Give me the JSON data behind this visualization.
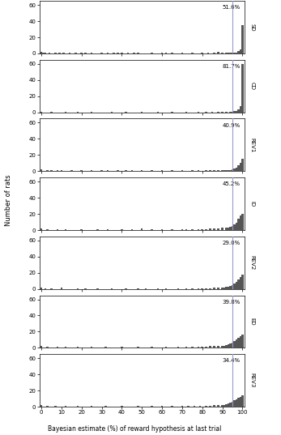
{
  "stages": [
    "SD",
    "CD",
    "REV1",
    "ID",
    "REV2",
    "ED",
    "REV3"
  ],
  "percentages": [
    51.6,
    81.7,
    40.9,
    45.2,
    29.0,
    39.8,
    34.4
  ],
  "vline_x": 95,
  "ylim": [
    0,
    65
  ],
  "yticks": [
    0,
    20,
    40,
    60
  ],
  "xlim": [
    0,
    100
  ],
  "xticks": [
    0,
    10,
    20,
    30,
    40,
    50,
    60,
    70,
    80,
    90,
    100
  ],
  "xlabel": "Bayesian estimate (%) of reward hypothesis at last trial",
  "ylabel": "Number of rats",
  "bar_color": "#555555",
  "vline_color": "#9999cc",
  "background_color": "#ffffff",
  "stage_hist": {
    "SD": [
      2,
      1,
      1,
      0,
      1,
      0,
      0,
      1,
      0,
      1,
      0,
      1,
      0,
      0,
      1,
      0,
      0,
      1,
      0,
      0,
      1,
      0,
      1,
      0,
      0,
      1,
      0,
      0,
      0,
      0,
      1,
      0,
      0,
      1,
      0,
      0,
      1,
      0,
      1,
      0,
      1,
      0,
      0,
      1,
      0,
      0,
      1,
      0,
      1,
      0,
      0,
      0,
      0,
      0,
      0,
      1,
      0,
      0,
      0,
      0,
      1,
      0,
      1,
      0,
      0,
      1,
      0,
      0,
      0,
      0,
      1,
      0,
      0,
      0,
      0,
      1,
      0,
      0,
      0,
      0,
      1,
      0,
      0,
      1,
      0,
      0,
      1,
      0,
      2,
      0,
      1,
      0,
      1,
      1,
      1,
      1,
      1,
      1,
      3,
      5,
      35
    ],
    "CD": [
      1,
      0,
      0,
      0,
      0,
      1,
      0,
      0,
      0,
      0,
      0,
      0,
      1,
      0,
      0,
      0,
      0,
      0,
      1,
      0,
      0,
      0,
      0,
      0,
      0,
      1,
      0,
      0,
      0,
      0,
      0,
      0,
      0,
      0,
      0,
      1,
      0,
      0,
      0,
      0,
      0,
      0,
      1,
      0,
      0,
      0,
      0,
      0,
      0,
      0,
      1,
      0,
      0,
      0,
      0,
      0,
      0,
      0,
      1,
      0,
      0,
      0,
      0,
      0,
      0,
      1,
      0,
      0,
      0,
      0,
      0,
      0,
      1,
      0,
      0,
      0,
      0,
      0,
      1,
      0,
      0,
      0,
      1,
      0,
      0,
      1,
      0,
      0,
      1,
      0,
      1,
      0,
      1,
      0,
      1,
      1,
      2,
      2,
      4,
      8,
      60
    ],
    "REV1": [
      2,
      0,
      0,
      1,
      0,
      1,
      0,
      0,
      1,
      0,
      1,
      0,
      0,
      0,
      0,
      1,
      0,
      0,
      0,
      0,
      1,
      0,
      0,
      0,
      0,
      1,
      0,
      0,
      0,
      0,
      1,
      0,
      0,
      1,
      0,
      0,
      0,
      0,
      1,
      0,
      0,
      0,
      1,
      0,
      0,
      1,
      0,
      0,
      0,
      0,
      1,
      0,
      0,
      0,
      0,
      1,
      0,
      0,
      0,
      0,
      1,
      0,
      0,
      0,
      0,
      1,
      0,
      0,
      0,
      0,
      1,
      0,
      0,
      0,
      0,
      1,
      0,
      0,
      1,
      0,
      0,
      0,
      1,
      0,
      1,
      0,
      1,
      0,
      1,
      0,
      1,
      1,
      1,
      1,
      1,
      2,
      3,
      4,
      7,
      10,
      15
    ],
    "ID": [
      2,
      0,
      0,
      1,
      0,
      0,
      0,
      0,
      1,
      0,
      0,
      0,
      1,
      0,
      0,
      0,
      0,
      0,
      0,
      0,
      1,
      0,
      0,
      0,
      0,
      0,
      0,
      0,
      1,
      0,
      0,
      0,
      0,
      1,
      0,
      0,
      0,
      0,
      0,
      0,
      1,
      0,
      0,
      0,
      0,
      1,
      0,
      0,
      0,
      0,
      2,
      0,
      0,
      0,
      0,
      1,
      0,
      0,
      0,
      0,
      1,
      0,
      0,
      0,
      0,
      1,
      0,
      0,
      0,
      0,
      1,
      0,
      1,
      0,
      0,
      1,
      0,
      0,
      1,
      0,
      1,
      0,
      1,
      0,
      2,
      0,
      2,
      0,
      2,
      0,
      3,
      0,
      3,
      3,
      4,
      5,
      7,
      9,
      14,
      18,
      20
    ],
    "REV2": [
      2,
      0,
      1,
      0,
      0,
      1,
      0,
      0,
      0,
      0,
      2,
      0,
      0,
      0,
      0,
      0,
      0,
      0,
      1,
      0,
      0,
      0,
      1,
      0,
      0,
      0,
      0,
      0,
      1,
      0,
      0,
      0,
      0,
      0,
      0,
      1,
      0,
      0,
      0,
      0,
      0,
      0,
      1,
      0,
      0,
      0,
      0,
      0,
      1,
      0,
      0,
      0,
      1,
      0,
      0,
      0,
      0,
      0,
      1,
      0,
      0,
      0,
      1,
      0,
      0,
      0,
      0,
      0,
      1,
      0,
      0,
      0,
      1,
      0,
      0,
      1,
      0,
      0,
      1,
      0,
      1,
      0,
      1,
      0,
      1,
      0,
      2,
      0,
      2,
      0,
      2,
      2,
      3,
      3,
      4,
      5,
      7,
      9,
      12,
      15,
      18
    ],
    "ED": [
      2,
      0,
      0,
      1,
      0,
      0,
      0,
      0,
      1,
      0,
      0,
      0,
      1,
      0,
      0,
      0,
      0,
      0,
      1,
      0,
      0,
      0,
      0,
      0,
      0,
      1,
      0,
      0,
      0,
      0,
      0,
      0,
      1,
      0,
      0,
      0,
      0,
      0,
      0,
      0,
      1,
      0,
      0,
      0,
      0,
      0,
      0,
      0,
      1,
      0,
      0,
      0,
      0,
      0,
      0,
      1,
      0,
      0,
      0,
      0,
      0,
      0,
      1,
      0,
      0,
      0,
      0,
      0,
      1,
      0,
      0,
      0,
      1,
      0,
      0,
      1,
      0,
      0,
      1,
      0,
      1,
      0,
      1,
      0,
      2,
      0,
      2,
      0,
      2,
      0,
      2,
      2,
      3,
      4,
      5,
      6,
      8,
      10,
      12,
      14,
      16
    ],
    "REV3": [
      2,
      0,
      0,
      1,
      0,
      0,
      0,
      1,
      0,
      0,
      0,
      0,
      1,
      0,
      0,
      0,
      0,
      0,
      1,
      0,
      0,
      0,
      0,
      0,
      0,
      1,
      0,
      0,
      0,
      0,
      0,
      0,
      1,
      0,
      0,
      0,
      0,
      0,
      0,
      0,
      1,
      0,
      0,
      0,
      0,
      0,
      0,
      0,
      1,
      0,
      0,
      0,
      0,
      0,
      0,
      1,
      0,
      0,
      0,
      0,
      1,
      0,
      0,
      0,
      0,
      1,
      0,
      0,
      0,
      0,
      1,
      0,
      0,
      1,
      0,
      0,
      1,
      0,
      0,
      1,
      0,
      0,
      1,
      0,
      1,
      0,
      2,
      0,
      2,
      0,
      2,
      2,
      3,
      4,
      5,
      6,
      8,
      9,
      11,
      12,
      14
    ]
  }
}
